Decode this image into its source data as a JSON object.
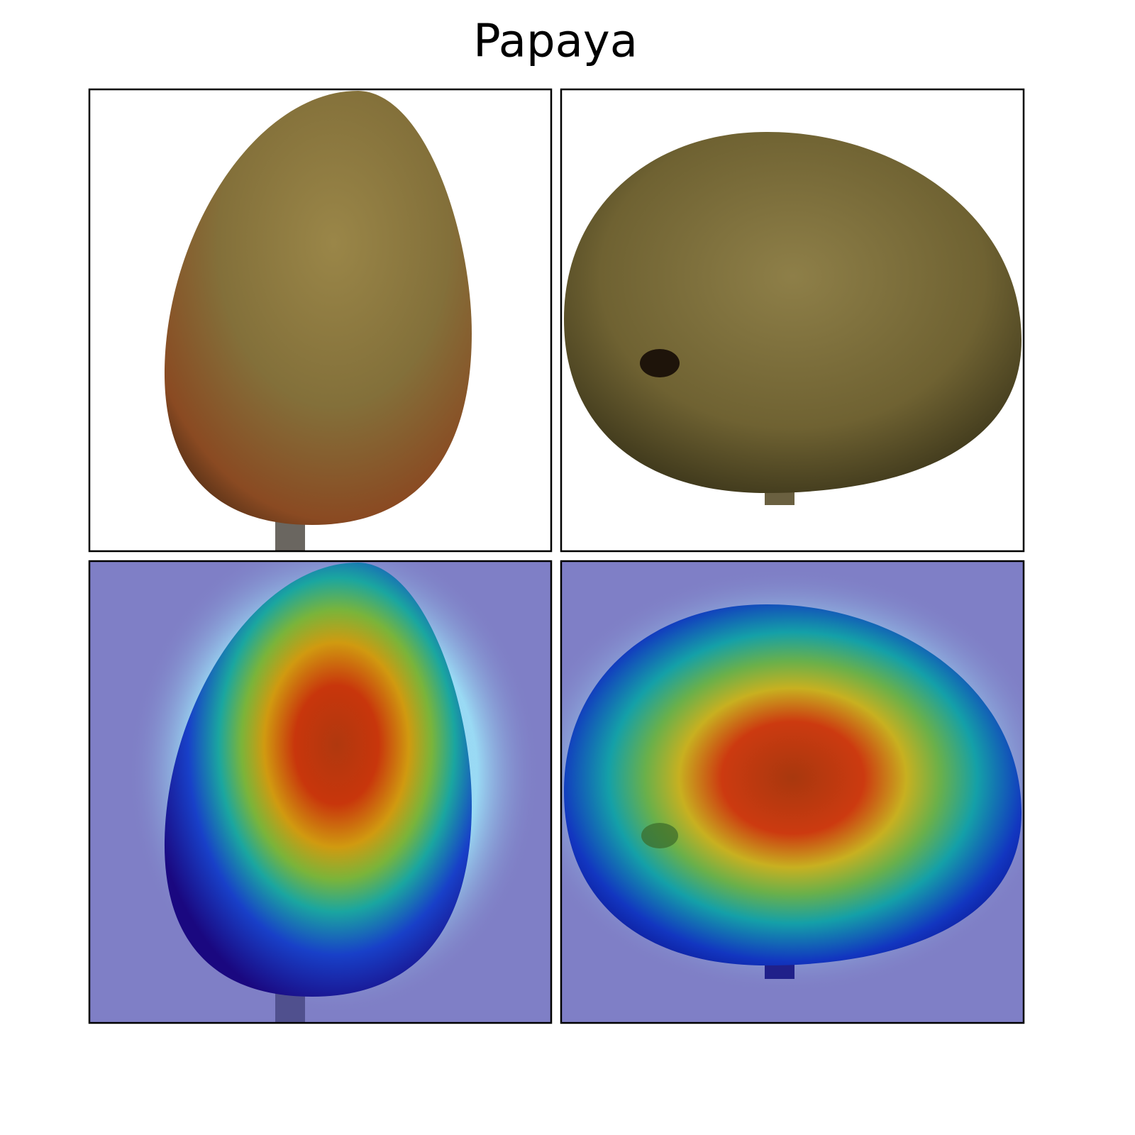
{
  "title": "Papaya"
}
